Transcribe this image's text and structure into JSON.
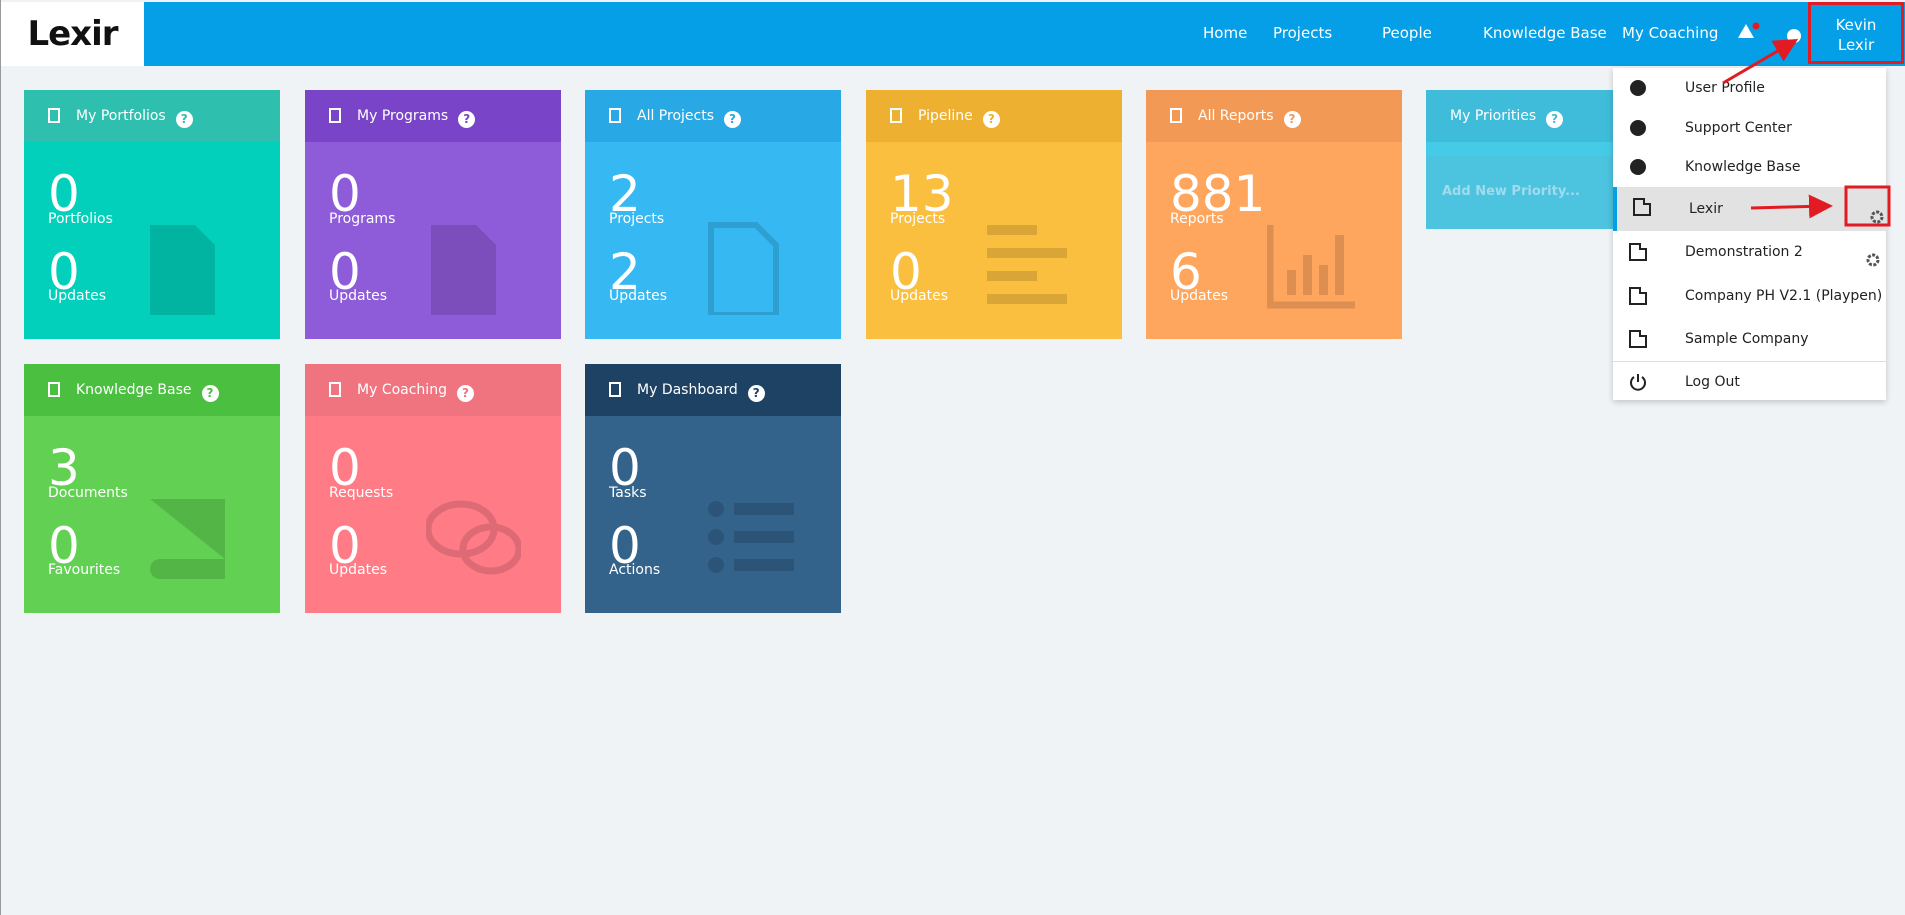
{
  "header": {
    "logo": "Lexir",
    "nav": [
      "Home",
      "Projects",
      "People",
      "Knowledge Base",
      "My Coaching"
    ],
    "user": [
      "Kevin",
      "Lexir"
    ]
  },
  "tiles": [
    {
      "title": "My Portfolios",
      "stats": [
        {
          "value": 0,
          "label": "Portfolios"
        },
        {
          "value": 0,
          "label": "Updates"
        }
      ]
    },
    {
      "title": "My Programs",
      "stats": [
        {
          "value": 0,
          "label": "Programs"
        },
        {
          "value": 0,
          "label": "Updates"
        }
      ]
    },
    {
      "title": "All Projects",
      "stats": [
        {
          "value": 2,
          "label": "Projects"
        },
        {
          "value": 2,
          "label": "Updates"
        }
      ]
    },
    {
      "title": "Pipeline",
      "stats": [
        {
          "value": 13,
          "label": "Projects"
        },
        {
          "value": 0,
          "label": "Updates"
        }
      ]
    },
    {
      "title": "All Reports",
      "stats": [
        {
          "value": 881,
          "label": "Reports"
        },
        {
          "value": 6,
          "label": "Updates"
        }
      ]
    },
    {
      "title": "Knowledge Base",
      "stats": [
        {
          "value": 3,
          "label": "Documents"
        },
        {
          "value": 0,
          "label": "Favourites"
        }
      ]
    },
    {
      "title": "My Coaching",
      "stats": [
        {
          "value": 0,
          "label": "Requests"
        },
        {
          "value": 0,
          "label": "Updates"
        }
      ]
    },
    {
      "title": "My Dashboard",
      "stats": [
        {
          "value": 0,
          "label": "Tasks"
        },
        {
          "value": 0,
          "label": "Actions"
        }
      ]
    }
  ],
  "priorities": {
    "title": "My Priorities",
    "action": "Add New Priority..."
  },
  "menu": [
    "User Profile",
    "Support Center",
    "Knowledge Base",
    "Lexir",
    "Demonstration 2",
    "Company PH V2.1 (Playpen)",
    "Sample Company",
    "Log Out"
  ]
}
